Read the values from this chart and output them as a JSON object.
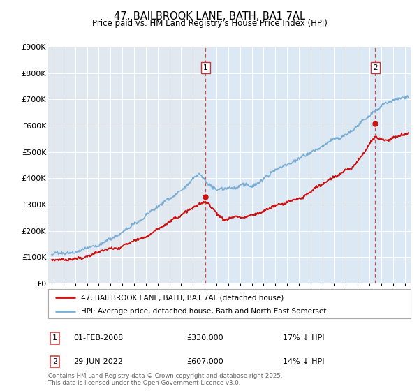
{
  "title": "47, BAILBROOK LANE, BATH, BA1 7AL",
  "subtitle": "Price paid vs. HM Land Registry's House Price Index (HPI)",
  "ylabel_max": 900000,
  "yticks": [
    0,
    100000,
    200000,
    300000,
    400000,
    500000,
    600000,
    700000,
    800000,
    900000
  ],
  "ytick_labels": [
    "£0",
    "£100K",
    "£200K",
    "£300K",
    "£400K",
    "£500K",
    "£600K",
    "£700K",
    "£800K",
    "£900K"
  ],
  "hpi_color": "#7aadd4",
  "price_color": "#cc1111",
  "dashed_line_color": "#cc3333",
  "bg_color": "#dce9f5",
  "bg_left_color": "#e8e8f0",
  "legend_label_price": "47, BAILBROOK LANE, BATH, BA1 7AL (detached house)",
  "legend_label_hpi": "HPI: Average price, detached house, Bath and North East Somerset",
  "annotation1_date": "01-FEB-2008",
  "annotation1_price": "£330,000",
  "annotation1_hpi": "17% ↓ HPI",
  "annotation2_date": "29-JUN-2022",
  "annotation2_price": "£607,000",
  "annotation2_hpi": "14% ↓ HPI",
  "footer": "Contains HM Land Registry data © Crown copyright and database right 2025.\nThis data is licensed under the Open Government Licence v3.0.",
  "vline1_x": 2008.08,
  "vline2_x": 2022.49,
  "xmin": 1994.7,
  "xmax": 2025.5,
  "dot1_x": 2008.08,
  "dot1_y_price": 330000,
  "dot2_x": 2022.49,
  "dot2_y_price": 607000
}
